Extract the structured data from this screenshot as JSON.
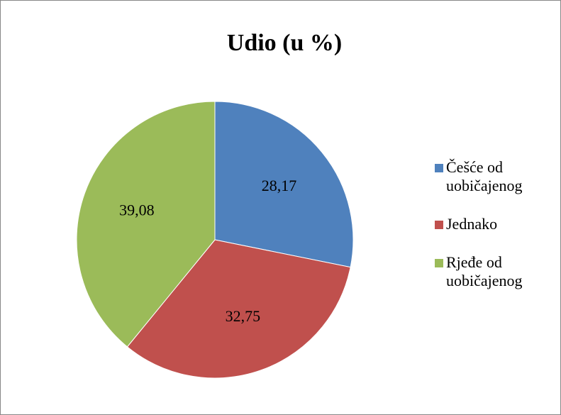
{
  "chart_data": {
    "type": "pie",
    "title": "Udio (u %)",
    "categories": [
      "Češće od uobičajenog",
      "Jednako",
      "Rjeđe od uobičajenog"
    ],
    "values": [
      28.17,
      32.75,
      39.08
    ],
    "value_labels": [
      "28,17",
      "32,75",
      "39,08"
    ],
    "colors": [
      "#4f81bd",
      "#c0504d",
      "#9bbb59"
    ],
    "legend": "right"
  }
}
